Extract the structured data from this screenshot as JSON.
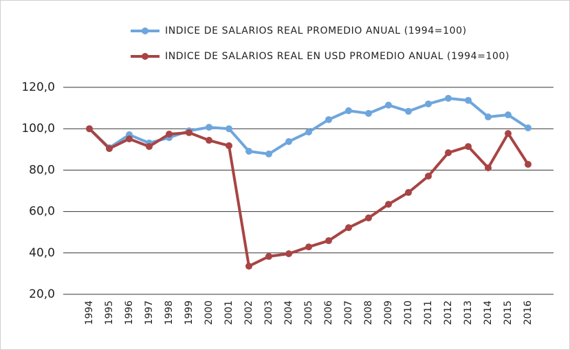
{
  "chart_data": {
    "type": "line",
    "categories": [
      "1994",
      "1995",
      "1996",
      "1997",
      "1998",
      "1999",
      "2000",
      "2001",
      "2002",
      "2003",
      "2004",
      "2005",
      "2006",
      "2007",
      "2008",
      "2009",
      "2010",
      "2011",
      "2012",
      "2013",
      "2014",
      "2015",
      "2016"
    ],
    "series": [
      {
        "name": "INDICE DE SALARIOS REAL PROMEDIO ANUAL (1994=100)",
        "color": "#6ea6dc",
        "values": [
          100,
          90.8,
          97.1,
          93.1,
          95.7,
          99,
          100.7,
          100,
          89.1,
          87.8,
          93.8,
          98.4,
          104.4,
          108.7,
          107.4,
          111.4,
          108.4,
          112,
          114.7,
          113.7,
          105.7,
          106.7,
          100.4
        ]
      },
      {
        "name": "INDICE DE SALARIOS REAL EN USD PROMEDIO ANUAL (1994=100)",
        "color": "#a84444",
        "values": [
          100,
          90.4,
          95.1,
          91.4,
          97.4,
          98.1,
          94.4,
          91.8,
          33.6,
          38.3,
          39.6,
          42.9,
          45.9,
          52.2,
          56.9,
          63.5,
          69.2,
          77.1,
          88.4,
          91.4,
          81.1,
          97.7,
          82.8
        ]
      }
    ],
    "ylim": [
      20,
      120
    ],
    "yticks": [
      {
        "value": 20,
        "label": "20,0"
      },
      {
        "value": 40,
        "label": "40,0"
      },
      {
        "value": 60,
        "label": "60,0"
      },
      {
        "value": 80,
        "label": "80,0"
      },
      {
        "value": 100,
        "label": "100,0"
      },
      {
        "value": 120,
        "label": "120,0"
      }
    ],
    "grid": true
  }
}
